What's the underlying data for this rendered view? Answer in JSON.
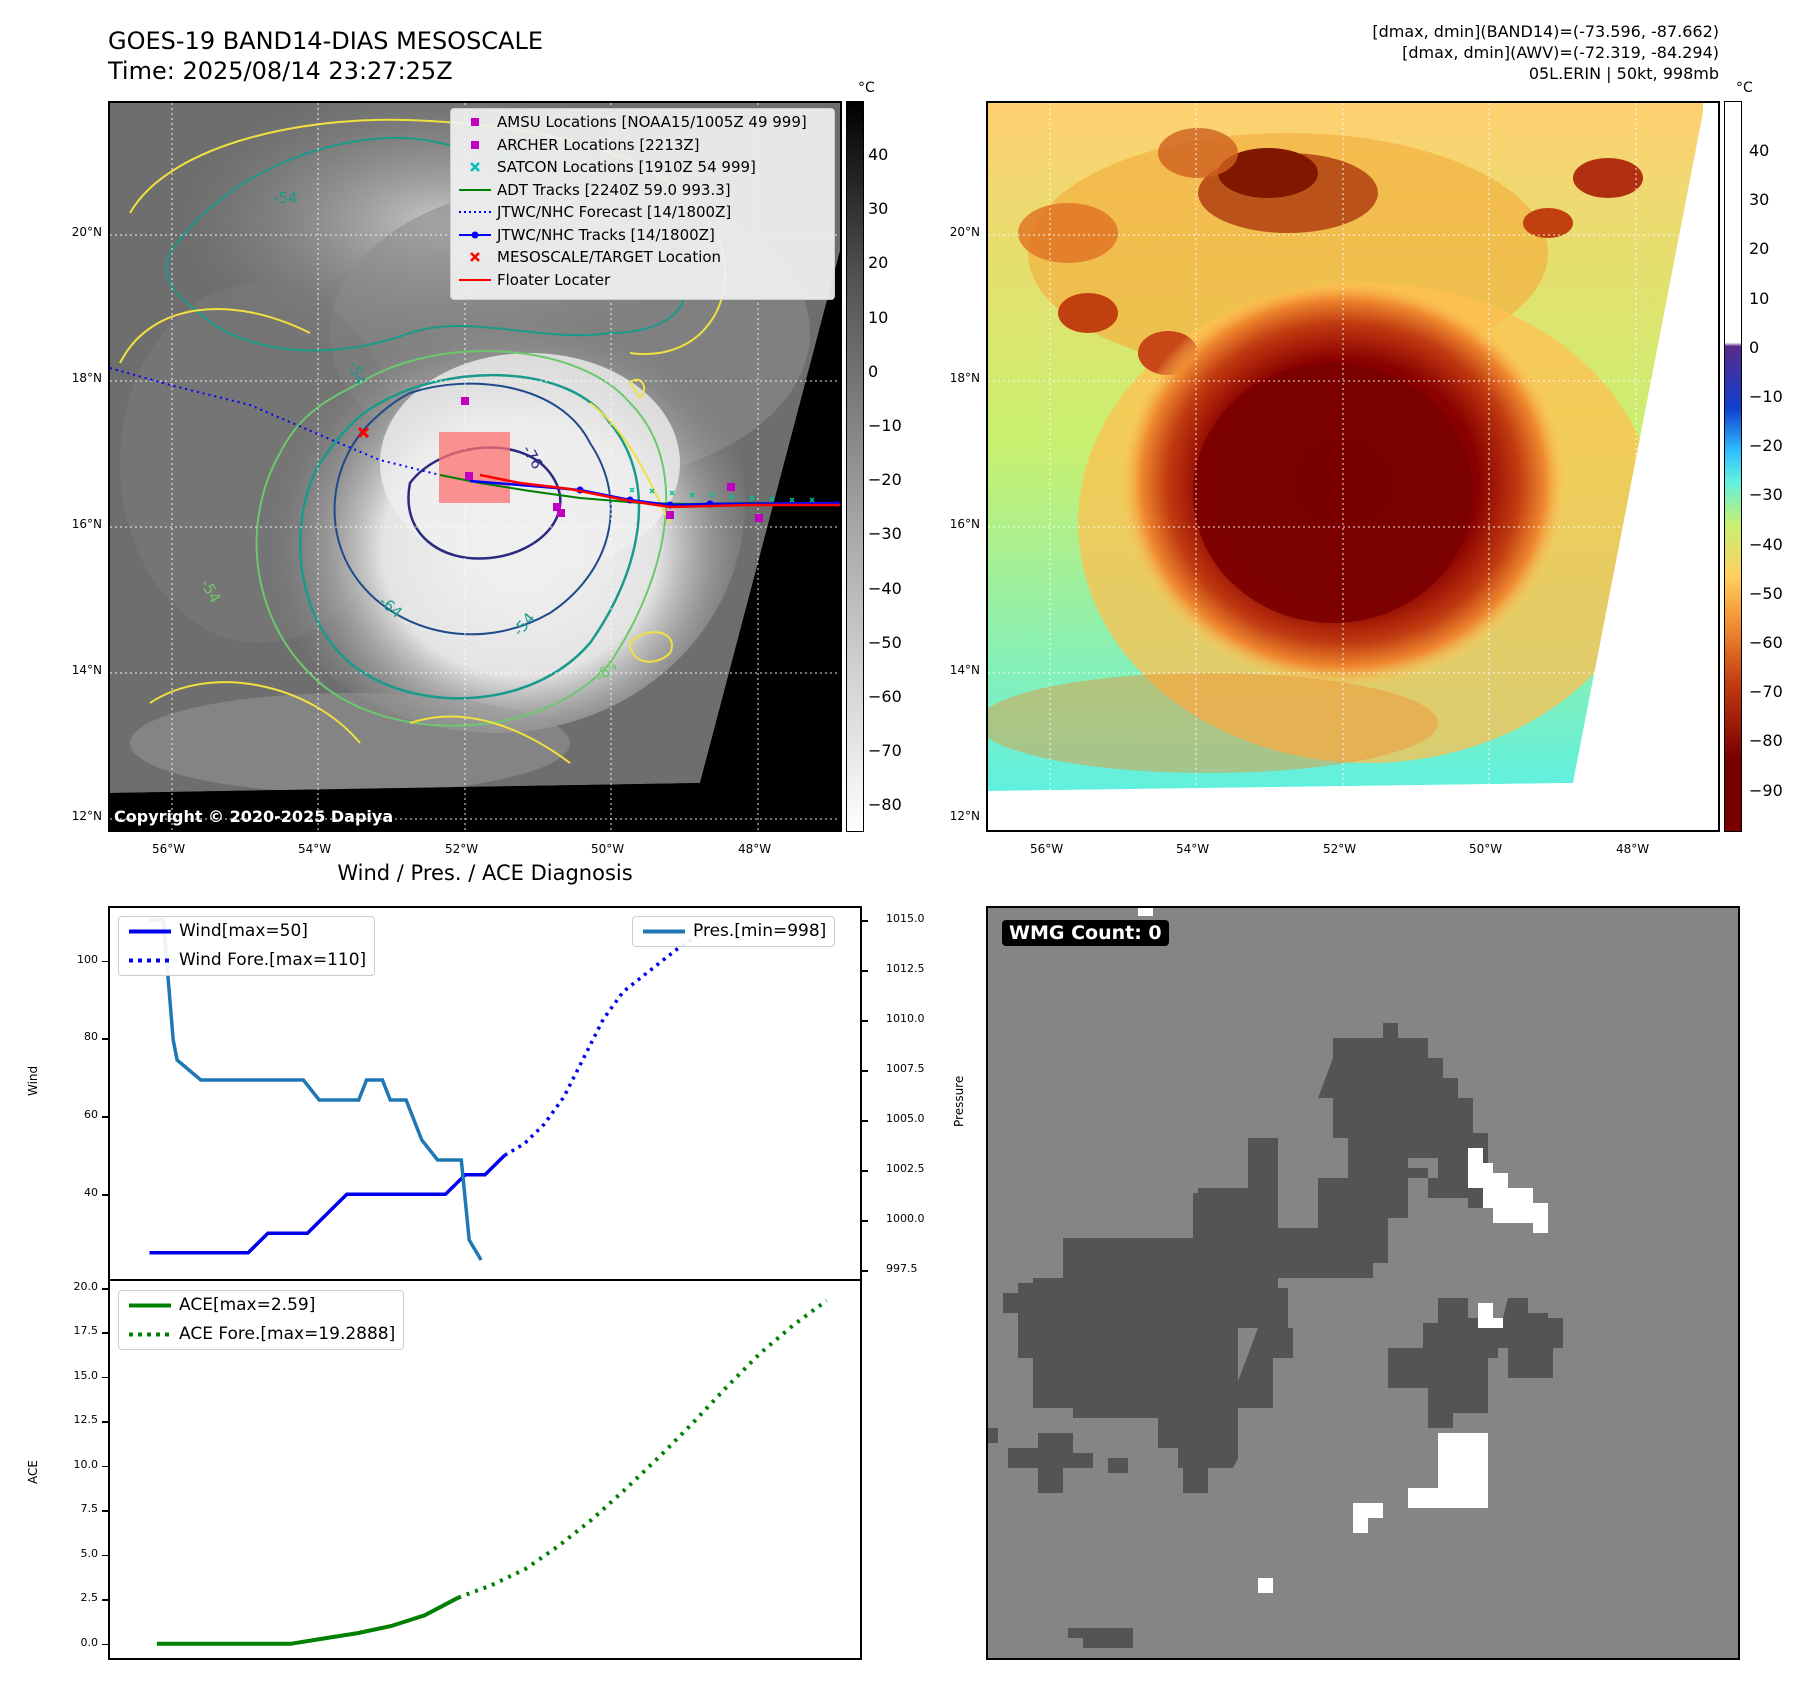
{
  "header": {
    "title_line1": "GOES-19 BAND14-DIAS MESOSCALE",
    "title_line2": "Time: 2025/08/14 23:27:25Z",
    "right_line1": "[dmax, dmin](BAND14)=(-73.596, -87.662)",
    "right_line2": "[dmax, dmin](AWV)=(-72.319, -84.294)",
    "right_line3": "05L.ERIN | 50kt, 998mb"
  },
  "map_axes": {
    "lat_labels": [
      "20°N",
      "18°N",
      "16°N",
      "14°N",
      "12°N"
    ],
    "lon_labels": [
      "56°W",
      "54°W",
      "52°W",
      "50°W",
      "48°W"
    ]
  },
  "colorbar_gray": {
    "unit": "°C",
    "ticks": [
      "40",
      "30",
      "20",
      "10",
      "0",
      "−10",
      "−20",
      "−30",
      "−40",
      "−50",
      "−60",
      "−70",
      "−80"
    ]
  },
  "colorbar_color": {
    "unit": "°C",
    "ticks": [
      "40",
      "30",
      "20",
      "10",
      "0",
      "−10",
      "−20",
      "−30",
      "−40",
      "−50",
      "−60",
      "−70",
      "−80",
      "−90"
    ]
  },
  "contour_labels": [
    "-54",
    "-64",
    "-64",
    "-54",
    "-54",
    "-76",
    "-54"
  ],
  "map_legend": [
    {
      "label": "AMSU Locations [NOAA15/1005Z 49 999]",
      "symbol": "square",
      "color": "#c000c0"
    },
    {
      "label": "ARCHER Locations [2213Z]",
      "symbol": "square",
      "color": "#c000c0"
    },
    {
      "label": "SATCON Locations [1910Z 54 999]",
      "symbol": "x",
      "color": "#00bfbf"
    },
    {
      "label": "ADT Tracks [2240Z 59.0 993.3]",
      "symbol": "line",
      "color": "#008000"
    },
    {
      "label": "JTWC/NHC Forecast [14/1800Z]",
      "symbol": "dotted",
      "color": "#0000ff"
    },
    {
      "label": "JTWC/NHC Tracks [14/1800Z]",
      "symbol": "line-dot",
      "color": "#0000ff"
    },
    {
      "label": "MESOSCALE/TARGET Location",
      "symbol": "x",
      "color": "#ff0000"
    },
    {
      "label": "Floater Locater",
      "symbol": "line",
      "color": "#ff0000"
    }
  ],
  "copyright": "Copyright © 2020-2025 Dapiya",
  "wmg": {
    "badge": "WMG Count: 0"
  },
  "chart_data": [
    {
      "type": "line",
      "title": "Wind / Pres. / ACE Diagnosis",
      "ylabel": "Wind",
      "ylabel2": "Pressure",
      "ylim": [
        18,
        114
      ],
      "ylim2": [
        997.0,
        1015.7
      ],
      "yticks": [
        40,
        60,
        80,
        100
      ],
      "yticks2": [
        "997.5",
        "1000.0",
        "1002.5",
        "1005.0",
        "1007.5",
        "1010.0",
        "1012.5",
        "1015.0"
      ],
      "yticks2_values": [
        997.5,
        1000.0,
        1002.5,
        1005.0,
        1007.5,
        1010.0,
        1012.5,
        1015.0
      ],
      "legend_left": [
        "Wind[max=50]",
        "Wind Fore.[max=110]"
      ],
      "legend_right": [
        "Pres.[min=998]"
      ],
      "series": [
        {
          "name": "Wind[max=50]",
          "color": "#0000ee",
          "axis": "left",
          "style": "solid",
          "x": [
            0,
            1,
            2,
            3,
            4,
            5,
            6,
            7,
            8,
            9,
            10,
            11,
            12,
            13,
            14,
            15,
            16,
            17,
            18
          ],
          "values": [
            25,
            25,
            25,
            25,
            25,
            25,
            30,
            30,
            30,
            35,
            40,
            40,
            40,
            40,
            40,
            40,
            45,
            45,
            50
          ]
        },
        {
          "name": "Wind Fore.[max=110]",
          "color": "#0000ee",
          "axis": "left",
          "style": "dotted",
          "x": [
            18,
            19,
            20,
            21,
            22,
            23,
            24,
            25,
            26,
            27,
            28,
            29
          ],
          "values": [
            50,
            53,
            58,
            65,
            75,
            85,
            92,
            96,
            100,
            104,
            107,
            110
          ]
        },
        {
          "name": "Pres.[min=998]",
          "color": "#1f77b4",
          "axis": "right",
          "style": "solid",
          "x": [
            0,
            0.7,
            1.2,
            1.4,
            2.6,
            3.5,
            5,
            6,
            7,
            7.8,
            8.6,
            9,
            10,
            10.6,
            11,
            11.8,
            12.2,
            13,
            13.8,
            14.6,
            15.8,
            16.2,
            16.8
          ],
          "values": [
            1015.0,
            1015.0,
            1009.0,
            1008.0,
            1007.0,
            1007.0,
            1007.0,
            1007.0,
            1007.0,
            1007.0,
            1006.0,
            1006.0,
            1006.0,
            1006.0,
            1007.0,
            1007.0,
            1006.0,
            1006.0,
            1004.0,
            1003.0,
            1003.0,
            999.0,
            998.0
          ]
        }
      ]
    },
    {
      "type": "line",
      "ylabel": "ACE",
      "ylim": [
        -0.8,
        20.0
      ],
      "yticks": [
        "0.0",
        "2.5",
        "5.0",
        "7.5",
        "10.0",
        "12.5",
        "15.0",
        "17.5",
        "20.0"
      ],
      "yticks_values": [
        0,
        2.5,
        5,
        7.5,
        10,
        12.5,
        15,
        17.5,
        20
      ],
      "legend": [
        "ACE[max=2.59]",
        "ACE Fore.[max=19.2888]"
      ],
      "series": [
        {
          "name": "ACE[max=2.59]",
          "color": "#008000",
          "style": "solid",
          "x": [
            0,
            2,
            4,
            6,
            8,
            10,
            12,
            14,
            16,
            18
          ],
          "values": [
            0,
            0,
            0,
            0,
            0,
            0.3,
            0.6,
            1.0,
            1.6,
            2.59
          ]
        },
        {
          "name": "ACE Fore.[max=19.2888]",
          "color": "#008000",
          "style": "dotted",
          "x": [
            18,
            20,
            22,
            24,
            26,
            28,
            30,
            32,
            34,
            36,
            38,
            40
          ],
          "values": [
            2.59,
            3.3,
            4.2,
            5.5,
            7.0,
            8.7,
            10.5,
            12.4,
            14.4,
            16.3,
            17.9,
            19.29
          ]
        }
      ]
    }
  ]
}
